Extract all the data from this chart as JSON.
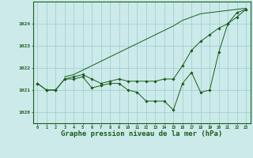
{
  "background_color": "#cceaea",
  "grid_color": "#99cccc",
  "line_color": "#1a5c1a",
  "marker_color": "#1a5c1a",
  "xlabel": "Graphe pression niveau de la mer (hPa)",
  "xlabel_fontsize": 6.5,
  "xlim": [
    -0.5,
    23.5
  ],
  "ylim": [
    1019.5,
    1025.0
  ],
  "yticks": [
    1020,
    1021,
    1022,
    1023,
    1024
  ],
  "xticks": [
    0,
    1,
    2,
    3,
    4,
    5,
    6,
    7,
    8,
    9,
    10,
    11,
    12,
    13,
    14,
    15,
    16,
    17,
    18,
    19,
    20,
    21,
    22,
    23
  ],
  "series1": {
    "x": [
      0,
      1,
      2,
      3,
      4,
      5,
      6,
      7,
      8,
      9,
      10,
      11,
      12,
      13,
      14,
      15,
      16,
      17,
      18,
      19,
      20,
      21,
      22,
      23
    ],
    "y": [
      1021.3,
      1021.0,
      1021.0,
      1021.5,
      1021.5,
      1021.6,
      1021.1,
      1021.2,
      1021.3,
      1021.3,
      1021.0,
      1020.9,
      1020.5,
      1020.5,
      1020.5,
      1020.1,
      1021.3,
      1021.8,
      1020.9,
      1021.0,
      1022.7,
      1024.0,
      1024.5,
      1024.65
    ]
  },
  "series2": {
    "x": [
      0,
      1,
      2,
      3,
      4,
      5,
      6,
      7,
      8,
      9,
      10,
      11,
      12,
      13,
      14,
      15,
      16,
      17,
      18,
      19,
      20,
      21,
      22,
      23
    ],
    "y": [
      1021.3,
      1021.0,
      1021.0,
      1021.5,
      1021.6,
      1021.7,
      1021.5,
      1021.3,
      1021.4,
      1021.5,
      1021.4,
      1021.4,
      1021.4,
      1021.4,
      1021.5,
      1021.5,
      1022.1,
      1022.8,
      1023.2,
      1023.5,
      1023.8,
      1024.0,
      1024.3,
      1024.65
    ]
  },
  "series3": {
    "x": [
      3,
      4,
      5,
      6,
      7,
      8,
      9,
      10,
      11,
      12,
      13,
      14,
      15,
      16,
      17,
      18,
      19,
      20,
      21,
      22,
      23
    ],
    "y": [
      1021.6,
      1021.7,
      1021.9,
      1022.1,
      1022.3,
      1022.5,
      1022.7,
      1022.9,
      1023.1,
      1023.3,
      1023.5,
      1023.7,
      1023.9,
      1024.15,
      1024.3,
      1024.45,
      1024.5,
      1024.55,
      1024.6,
      1024.65,
      1024.7
    ]
  }
}
